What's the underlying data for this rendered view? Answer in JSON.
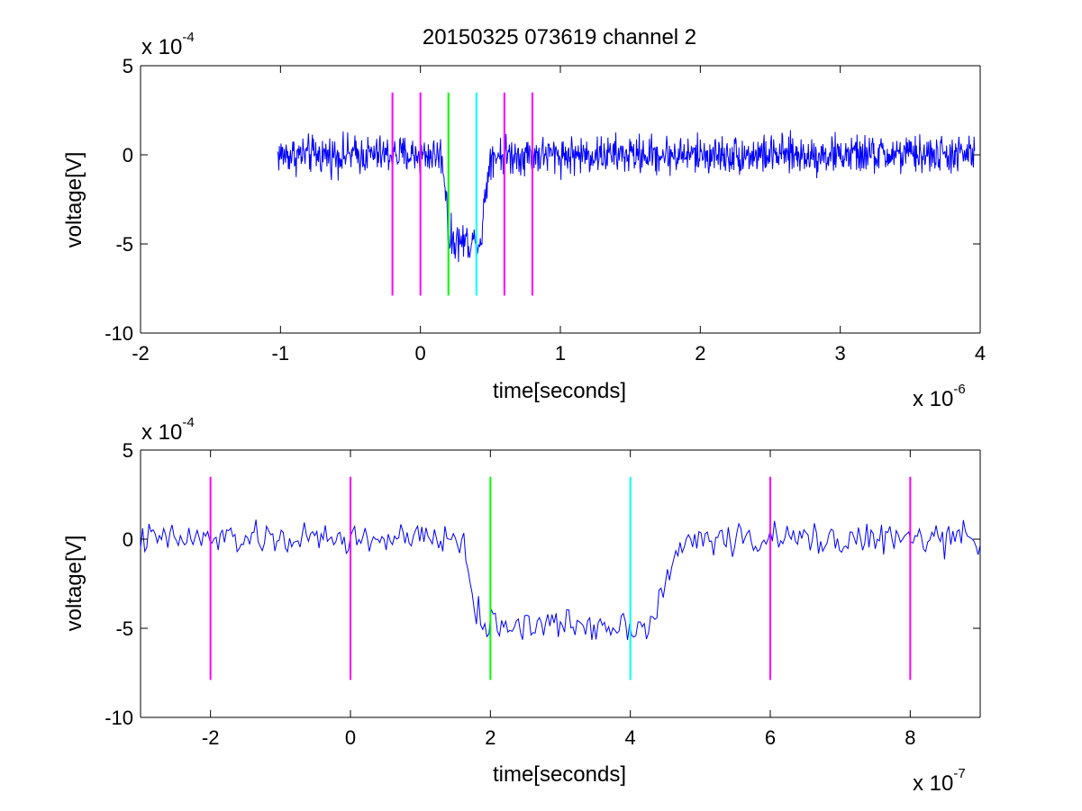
{
  "title": "20150325 073619 channel 2",
  "line_colors": {
    "signal": "#0000ff",
    "marker_magenta": "#ff00ff",
    "marker_green": "#00ff00",
    "marker_cyan": "#00ffff"
  },
  "chart_data": [
    {
      "type": "line",
      "panel": "top",
      "title": "20150325 073619 channel 2",
      "xlabel": "time[seconds]",
      "ylabel": "voltage[V]",
      "x_exponent_base": "x 10",
      "x_exponent_power": "-6",
      "y_exponent_base": "x 10",
      "y_exponent_power": "-4",
      "xlim": [
        -2,
        4
      ],
      "ylim": [
        -10,
        5
      ],
      "xticks": [
        "-2",
        "-1",
        "0",
        "1",
        "2",
        "3",
        "4"
      ],
      "yticks": [
        "-10",
        "-5",
        "0",
        "5"
      ],
      "grid": false,
      "series": [
        {
          "color": "#0000ff",
          "x_range": [
            -1.02,
            3.96
          ],
          "noise_amplitude": 1.6,
          "envelope": [
            {
              "x": -1.02,
              "y": 0
            },
            {
              "x": 0.15,
              "y": 0
            },
            {
              "x": 0.19,
              "y": -2.5
            },
            {
              "x": 0.2,
              "y": -4.8
            },
            {
              "x": 0.43,
              "y": -4.9
            },
            {
              "x": 0.46,
              "y": -2.5
            },
            {
              "x": 0.5,
              "y": 0
            },
            {
              "x": 3.96,
              "y": 0
            }
          ]
        }
      ],
      "markers": [
        {
          "x": -0.2,
          "color": "#ff00ff",
          "y_from": -7.9,
          "y_to": 3.5
        },
        {
          "x": 0.0,
          "color": "#ff00ff",
          "y_from": -7.9,
          "y_to": 3.5
        },
        {
          "x": 0.2,
          "color": "#00ff00",
          "y_from": -7.9,
          "y_to": 3.5
        },
        {
          "x": 0.4,
          "color": "#00ffff",
          "y_from": -7.9,
          "y_to": 3.5
        },
        {
          "x": 0.6,
          "color": "#ff00ff",
          "y_from": -7.9,
          "y_to": 3.5
        },
        {
          "x": 0.8,
          "color": "#ff00ff",
          "y_from": -7.9,
          "y_to": 3.5
        }
      ]
    },
    {
      "type": "line",
      "panel": "bottom",
      "xlabel": "time[seconds]",
      "ylabel": "voltage[V]",
      "x_exponent_base": "x 10",
      "x_exponent_power": "-7",
      "y_exponent_base": "x 10",
      "y_exponent_power": "-4",
      "xlim": [
        -3,
        9
      ],
      "ylim": [
        -10,
        5
      ],
      "xticks": [
        "-2",
        "0",
        "2",
        "4",
        "6",
        "8"
      ],
      "xtick_values": [
        -2,
        0,
        2,
        4,
        6,
        8
      ],
      "yticks": [
        "-10",
        "-5",
        "0",
        "5"
      ],
      "grid": false,
      "series": [
        {
          "color": "#0000ff",
          "x_range": [
            -3,
            9
          ],
          "noise_amplitude": 1.3,
          "envelope": [
            {
              "x": -3.0,
              "y": 0
            },
            {
              "x": 1.6,
              "y": 0
            },
            {
              "x": 1.8,
              "y": -4.2
            },
            {
              "x": 1.9,
              "y": -4.8
            },
            {
              "x": 4.3,
              "y": -4.8
            },
            {
              "x": 4.5,
              "y": -2.5
            },
            {
              "x": 4.8,
              "y": 0
            },
            {
              "x": 9.0,
              "y": 0
            }
          ]
        }
      ],
      "markers": [
        {
          "x": -2,
          "color": "#ff00ff",
          "y_from": -7.9,
          "y_to": 3.5
        },
        {
          "x": 0,
          "color": "#ff00ff",
          "y_from": -7.9,
          "y_to": 3.5
        },
        {
          "x": 2,
          "color": "#00ff00",
          "y_from": -7.9,
          "y_to": 3.5
        },
        {
          "x": 4,
          "color": "#00ffff",
          "y_from": -7.9,
          "y_to": 3.5
        },
        {
          "x": 6,
          "color": "#ff00ff",
          "y_from": -7.9,
          "y_to": 3.5
        },
        {
          "x": 8,
          "color": "#ff00ff",
          "y_from": -7.9,
          "y_to": 3.5
        }
      ]
    }
  ]
}
